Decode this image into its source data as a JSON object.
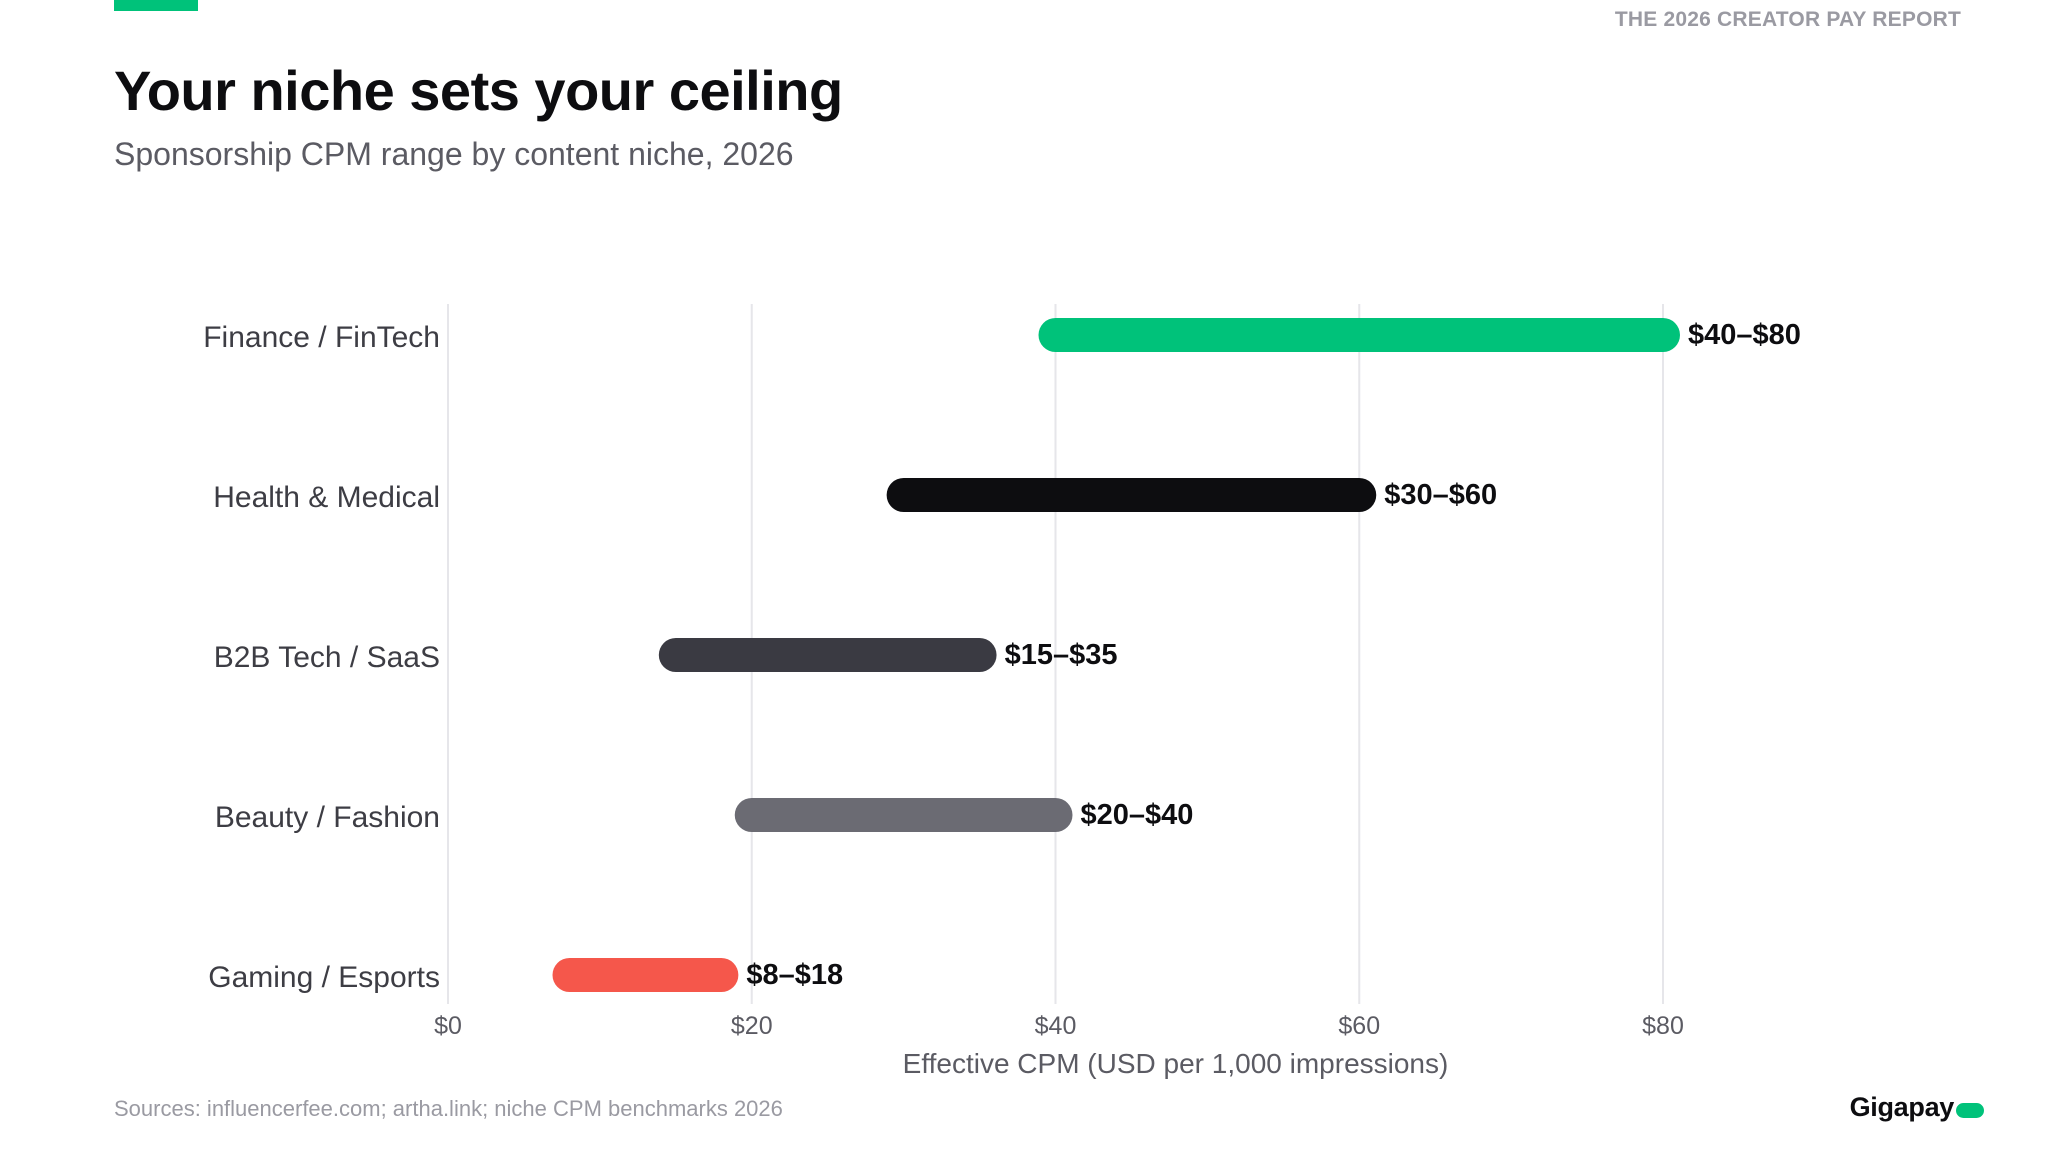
{
  "header": {
    "kicker": "THE 2026 CREATOR PAY REPORT",
    "title": "Your niche sets your ceiling",
    "subtitle": "Sponsorship CPM range by content niche, 2026"
  },
  "footer": {
    "source": "Sources: influencerfee.com; artha.link; niche CPM benchmarks 2026",
    "brand": "Gigapay"
  },
  "colors": {
    "accent": "#00c27a",
    "grid": "#e6e6ea",
    "axis_text": "#5b5b63",
    "category_text": "#3d3d44",
    "value_text": "#0d0d10"
  },
  "chart_data": {
    "type": "range-bar",
    "orientation": "horizontal",
    "categories": [
      "Finance / FinTech",
      "Health & Medical",
      "B2B Tech / SaaS",
      "Beauty / Fashion",
      "Gaming / Esports"
    ],
    "ranges": [
      {
        "category": "Finance / FinTech",
        "low": 40,
        "high": 80,
        "label": "$40–$80",
        "color": "#00c27a"
      },
      {
        "category": "Health & Medical",
        "low": 30,
        "high": 60,
        "label": "$30–$60",
        "color": "#0d0d10"
      },
      {
        "category": "B2B Tech / SaaS",
        "low": 15,
        "high": 35,
        "label": "$15–$35",
        "color": "#3a3a42"
      },
      {
        "category": "Beauty / Fashion",
        "low": 20,
        "high": 40,
        "label": "$20–$40",
        "color": "#6b6b73"
      },
      {
        "category": "Gaming / Esports",
        "low": 8,
        "high": 18,
        "label": "$8–$18",
        "color": "#f5574b"
      }
    ],
    "xlabel": "Effective CPM (USD per 1,000 impressions)",
    "ylabel": "",
    "xlim": [
      0,
      80
    ],
    "xticks": [
      0,
      20,
      40,
      60,
      80
    ],
    "xtick_labels": [
      "$0",
      "$20",
      "$40",
      "$60",
      "$80"
    ],
    "grid": true,
    "legend": "none"
  }
}
